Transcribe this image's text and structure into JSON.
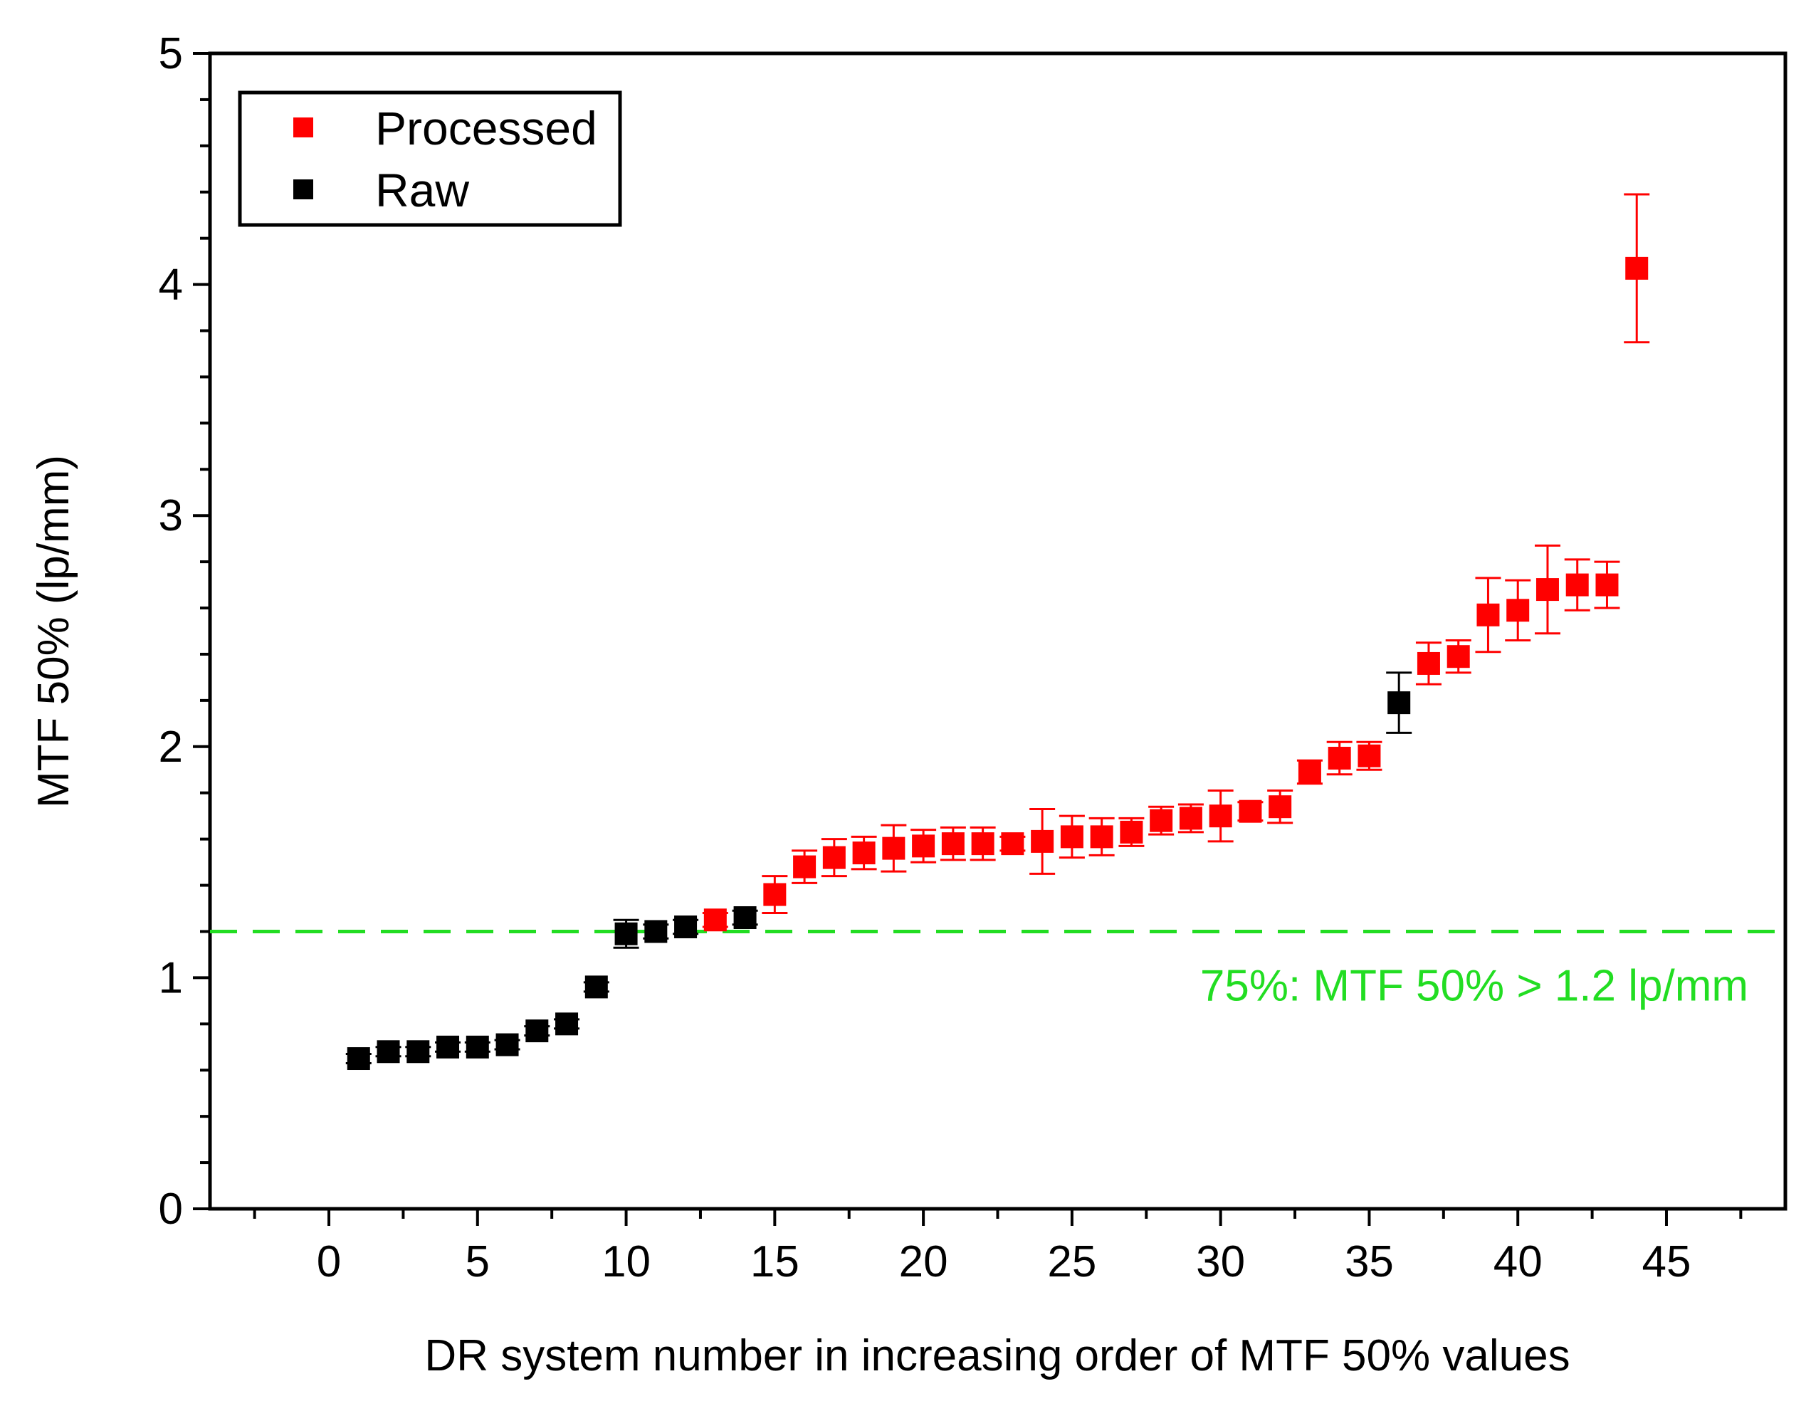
{
  "chart_data": {
    "type": "scatter",
    "title": "",
    "xlabel": "DR system number in increasing order of MTF 50% values",
    "ylabel": "MTF 50% (lp/mm)",
    "xlim": [
      -4,
      49
    ],
    "ylim": [
      0,
      5
    ],
    "x_ticks": [
      0,
      5,
      10,
      15,
      20,
      25,
      30,
      35,
      40,
      45
    ],
    "y_ticks": [
      0,
      1,
      2,
      3,
      4,
      5
    ],
    "grid": false,
    "legend_position": "top-left",
    "series": [
      {
        "name": "Processed",
        "color": "#ff0000",
        "marker": "square",
        "points": [
          {
            "x": 13,
            "y": 1.25,
            "err": 0.03
          },
          {
            "x": 15,
            "y": 1.36,
            "err": 0.08
          },
          {
            "x": 16,
            "y": 1.48,
            "err": 0.07
          },
          {
            "x": 17,
            "y": 1.52,
            "err": 0.08
          },
          {
            "x": 18,
            "y": 1.54,
            "err": 0.07
          },
          {
            "x": 19,
            "y": 1.56,
            "err": 0.1
          },
          {
            "x": 20,
            "y": 1.57,
            "err": 0.07
          },
          {
            "x": 21,
            "y": 1.58,
            "err": 0.07
          },
          {
            "x": 22,
            "y": 1.58,
            "err": 0.07
          },
          {
            "x": 23,
            "y": 1.58,
            "err": 0.03
          },
          {
            "x": 24,
            "y": 1.59,
            "err": 0.14
          },
          {
            "x": 25,
            "y": 1.61,
            "err": 0.09
          },
          {
            "x": 26,
            "y": 1.61,
            "err": 0.08
          },
          {
            "x": 27,
            "y": 1.63,
            "err": 0.06
          },
          {
            "x": 28,
            "y": 1.68,
            "err": 0.06
          },
          {
            "x": 29,
            "y": 1.69,
            "err": 0.06
          },
          {
            "x": 30,
            "y": 1.7,
            "err": 0.11
          },
          {
            "x": 31,
            "y": 1.72,
            "err": 0.04
          },
          {
            "x": 32,
            "y": 1.74,
            "err": 0.07
          },
          {
            "x": 33,
            "y": 1.89,
            "err": 0.05
          },
          {
            "x": 34,
            "y": 1.95,
            "err": 0.07
          },
          {
            "x": 35,
            "y": 1.96,
            "err": 0.06
          },
          {
            "x": 37,
            "y": 2.36,
            "err": 0.09
          },
          {
            "x": 38,
            "y": 2.39,
            "err": 0.07
          },
          {
            "x": 39,
            "y": 2.57,
            "err": 0.16
          },
          {
            "x": 40,
            "y": 2.59,
            "err": 0.13
          },
          {
            "x": 41,
            "y": 2.68,
            "err": 0.19
          },
          {
            "x": 42,
            "y": 2.7,
            "err": 0.11
          },
          {
            "x": 43,
            "y": 2.7,
            "err": 0.1
          },
          {
            "x": 44,
            "y": 4.07,
            "err": 0.32
          }
        ]
      },
      {
        "name": "Raw",
        "color": "#000000",
        "marker": "square",
        "points": [
          {
            "x": 1,
            "y": 0.65,
            "err": 0.02
          },
          {
            "x": 2,
            "y": 0.68,
            "err": 0.02
          },
          {
            "x": 3,
            "y": 0.68,
            "err": 0.02
          },
          {
            "x": 4,
            "y": 0.7,
            "err": 0.02
          },
          {
            "x": 5,
            "y": 0.7,
            "err": 0.02
          },
          {
            "x": 6,
            "y": 0.71,
            "err": 0.02
          },
          {
            "x": 7,
            "y": 0.77,
            "err": 0.02
          },
          {
            "x": 8,
            "y": 0.8,
            "err": 0.02
          },
          {
            "x": 9,
            "y": 0.96,
            "err": 0.02
          },
          {
            "x": 10,
            "y": 1.19,
            "err": 0.06
          },
          {
            "x": 11,
            "y": 1.2,
            "err": 0.03
          },
          {
            "x": 12,
            "y": 1.22,
            "err": 0.03
          },
          {
            "x": 14,
            "y": 1.26,
            "err": 0.03
          },
          {
            "x": 36,
            "y": 2.19,
            "err": 0.13
          }
        ]
      }
    ],
    "reference_line": {
      "y": 1.2,
      "style": "dashed",
      "color": "#22dd22",
      "label": "75%: MTF 50% > 1.2 lp/mm"
    }
  }
}
